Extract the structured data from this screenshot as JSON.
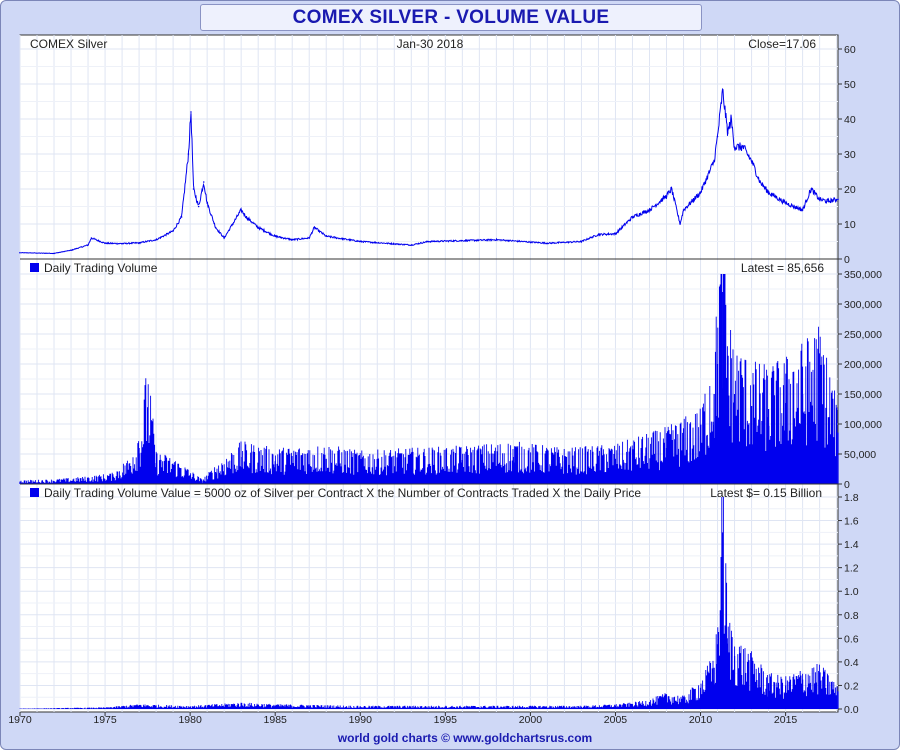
{
  "title": "COMEX SILVER - VOLUME VALUE",
  "footer": "world gold charts © www.goldchartsrus.com",
  "colors": {
    "series": "#0000ee",
    "frame": "#cfd8f6",
    "title": "#1a1ab0",
    "grid": "#dfe5f3"
  },
  "chart_data": [
    {
      "type": "line",
      "panel": "price",
      "labels": {
        "left": "COMEX Silver",
        "center": "Jan-30  2018",
        "right": "Close=17.06"
      },
      "x_ticks": [
        "1970",
        "1975",
        "1980",
        "1985",
        "1990",
        "1995",
        "2000",
        "2005",
        "2010",
        "2015"
      ],
      "xlim": [
        1970,
        2018.08
      ],
      "y_ticks": [
        "0",
        "10",
        "20",
        "30",
        "40",
        "50",
        "60"
      ],
      "ylim": [
        0,
        60
      ],
      "grid": true,
      "series": [
        {
          "x": [
            1970,
            1972,
            1973,
            1974,
            1974.2,
            1975,
            1976,
            1977,
            1978,
            1979,
            1979.5,
            1979.9,
            1980.05,
            1980.2,
            1980.5,
            1980.8,
            1981,
            1981.5,
            1982,
            1982.5,
            1983,
            1983.3,
            1984,
            1985,
            1986,
            1987,
            1987.3,
            1988,
            1990,
            1993,
            1994,
            1998,
            2001,
            2003,
            2004,
            2005,
            2006,
            2007,
            2008,
            2008.3,
            2008.8,
            2009,
            2010,
            2010.8,
            2011,
            2011.3,
            2011.6,
            2011.8,
            2012,
            2012.5,
            2013,
            2013.5,
            2014,
            2015,
            2016,
            2016.5,
            2017,
            2017.5,
            2018,
            2018.08
          ],
          "values": [
            1.8,
            1.6,
            2.5,
            4,
            6,
            4.5,
            4.4,
            4.6,
            5.5,
            8,
            12,
            30,
            42,
            20,
            15,
            22,
            16,
            9,
            6,
            10,
            14,
            12,
            9,
            6.5,
            5.5,
            6,
            9,
            6.5,
            5,
            4,
            5,
            5.5,
            4.5,
            5,
            7,
            7.2,
            12,
            14,
            18,
            20,
            10,
            14,
            19,
            28,
            35,
            48,
            36,
            40,
            32,
            32,
            28,
            22,
            19,
            16,
            14,
            20,
            17,
            16.5,
            17,
            17.06
          ]
        }
      ]
    },
    {
      "type": "bar",
      "panel": "volume",
      "labels": {
        "left": "Daily Trading Volume",
        "right": "Latest = 85,656"
      },
      "y_ticks": [
        "0",
        "50,000",
        "100,000",
        "150,000",
        "200,000",
        "250,000",
        "300,000",
        "350,000"
      ],
      "ylim": [
        0,
        350000
      ],
      "grid": true,
      "series": [
        {
          "x": [
            1970,
            1972,
            1974,
            1975.5,
            1976.5,
            1977,
            1977.5,
            1978,
            1979,
            1980,
            1980.7,
            1981.5,
            1983,
            1985,
            1988,
            1990,
            1993,
            1996,
            1999,
            2002,
            2005,
            2008,
            2010,
            2010.8,
            2011,
            2011.3,
            2011.6,
            2012,
            2013,
            2014,
            2015,
            2016,
            2017,
            2018.08
          ],
          "values": [
            4000,
            5000,
            8000,
            12000,
            30000,
            60000,
            128000,
            35000,
            28000,
            15000,
            5000,
            20000,
            45000,
            38000,
            42000,
            35000,
            38000,
            40000,
            45000,
            38000,
            42000,
            60000,
            80000,
            150000,
            200000,
            320000,
            180000,
            150000,
            130000,
            125000,
            135000,
            150000,
            170000,
            85656
          ]
        }
      ]
    },
    {
      "type": "bar",
      "panel": "volume-value",
      "labels": {
        "left": "Daily Trading Volume Value = 5000 oz of Silver per Contract X the Number of Contracts Traded X the Daily Price",
        "right": "Latest $= 0.15 Billion"
      },
      "y_ticks": [
        "0.0",
        "0.2",
        "0.4",
        "0.6",
        "0.8",
        "1.0",
        "1.2",
        "1.4",
        "1.6",
        "1.8"
      ],
      "ylim": [
        0,
        1.85
      ],
      "grid": true,
      "series": [
        {
          "x": [
            1970,
            1975,
            1977,
            1980,
            1983,
            1985,
            1990,
            1995,
            2000,
            2003,
            2005,
            2006,
            2007,
            2008,
            2009,
            2010,
            2010.8,
            2011,
            2011.3,
            2011.6,
            2012,
            2013,
            2014,
            2015,
            2016,
            2017,
            2018.08
          ],
          "values": [
            0.003,
            0.01,
            0.03,
            0.02,
            0.04,
            0.03,
            0.02,
            0.02,
            0.02,
            0.02,
            0.03,
            0.04,
            0.06,
            0.1,
            0.08,
            0.18,
            0.35,
            0.55,
            1.5,
            0.6,
            0.45,
            0.35,
            0.22,
            0.2,
            0.25,
            0.28,
            0.15
          ]
        }
      ]
    }
  ]
}
